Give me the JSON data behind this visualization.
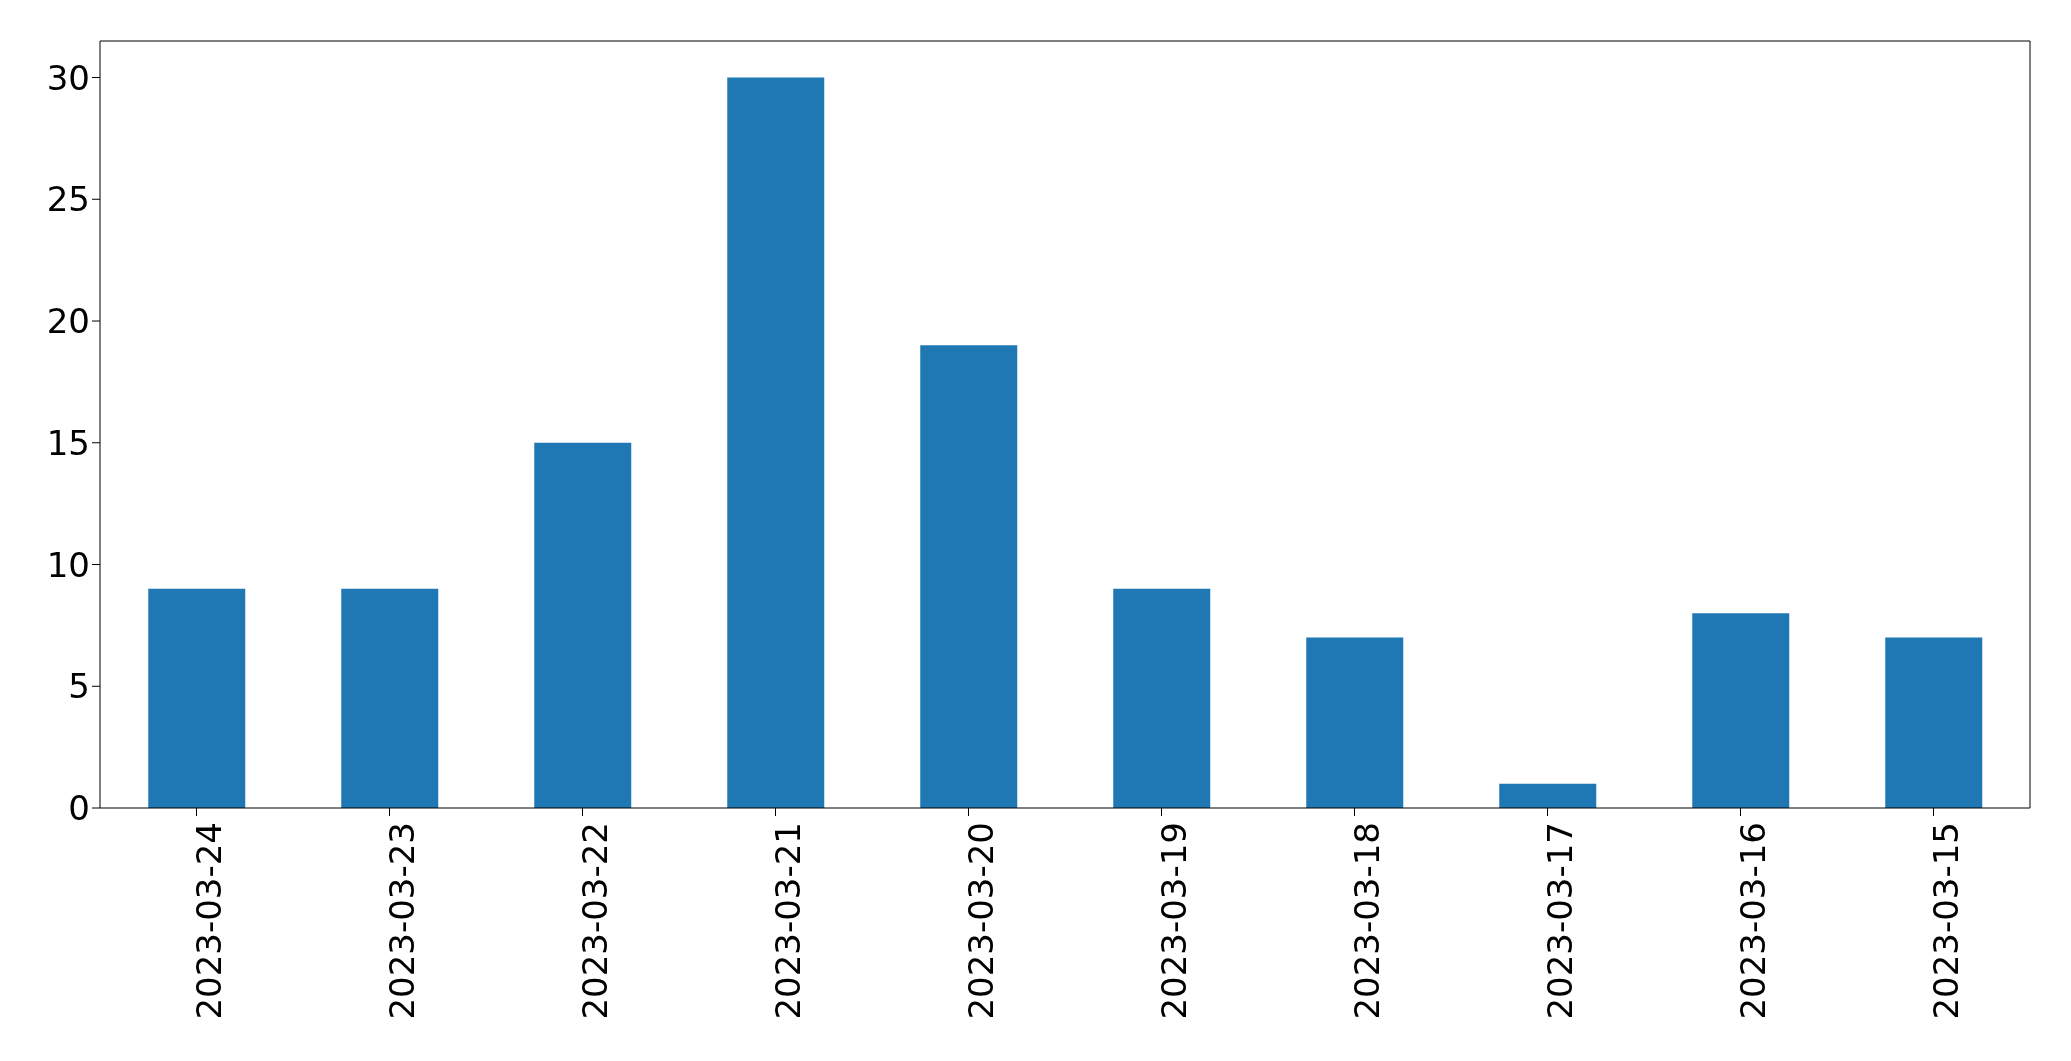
{
  "chart_data": {
    "type": "bar",
    "categories": [
      "2023-03-24",
      "2023-03-23",
      "2023-03-22",
      "2023-03-21",
      "2023-03-20",
      "2023-03-19",
      "2023-03-18",
      "2023-03-17",
      "2023-03-16",
      "2023-03-15"
    ],
    "values": [
      9,
      9,
      15,
      30,
      19,
      9,
      7,
      1,
      8,
      7
    ],
    "color": "#1f77b4",
    "ylim": [
      0,
      31.5
    ],
    "yticks": [
      0,
      5,
      10,
      15,
      20,
      25,
      30
    ],
    "grid": false
  }
}
